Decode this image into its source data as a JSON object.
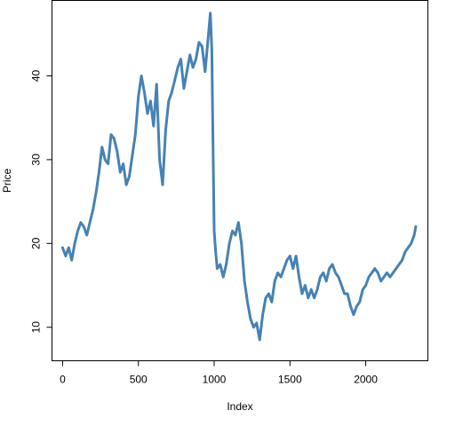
{
  "chart_data": {
    "type": "line",
    "title": "",
    "xlabel": "Index",
    "ylabel": "Price",
    "xlim": [
      -70,
      2410
    ],
    "ylim": [
      6.0,
      49.0
    ],
    "xticks": [
      0,
      500,
      1000,
      1500,
      2000
    ],
    "yticks": [
      10,
      20,
      30,
      40
    ],
    "grid": false,
    "legend": "none",
    "line_color": "#4682b4",
    "series": [
      {
        "x": [
          0,
          20,
          40,
          60,
          80,
          100,
          120,
          140,
          160,
          180,
          200,
          220,
          240,
          260,
          280,
          300,
          320,
          340,
          360,
          380,
          400,
          420,
          440,
          460,
          480,
          500,
          520,
          540,
          560,
          580,
          600,
          620,
          640,
          660,
          680,
          700,
          720,
          740,
          760,
          780,
          800,
          820,
          840,
          860,
          880,
          900,
          920,
          940,
          960,
          975,
          985,
          990,
          1000,
          1010,
          1020,
          1040,
          1060,
          1080,
          1100,
          1120,
          1140,
          1160,
          1180,
          1200,
          1220,
          1240,
          1260,
          1280,
          1300,
          1320,
          1340,
          1360,
          1380,
          1400,
          1420,
          1440,
          1460,
          1480,
          1500,
          1520,
          1540,
          1560,
          1580,
          1600,
          1620,
          1640,
          1660,
          1680,
          1700,
          1720,
          1740,
          1760,
          1780,
          1800,
          1820,
          1840,
          1860,
          1880,
          1900,
          1920,
          1940,
          1960,
          1980,
          2000,
          2020,
          2040,
          2060,
          2080,
          2100,
          2120,
          2140,
          2160,
          2180,
          2200,
          2220,
          2240,
          2260,
          2280,
          2300,
          2320,
          2330
        ],
        "y": [
          19.5,
          18.5,
          19.5,
          18.0,
          20.0,
          21.5,
          22.5,
          22.0,
          21.0,
          22.5,
          24.0,
          26.0,
          28.5,
          31.5,
          30.0,
          29.5,
          33.0,
          32.5,
          31.0,
          28.5,
          29.5,
          27.0,
          28.0,
          30.5,
          33.0,
          37.5,
          40.0,
          38.0,
          35.5,
          37.0,
          34.0,
          39.0,
          30.0,
          27.0,
          33.5,
          37.0,
          38.0,
          39.5,
          41.0,
          42.0,
          38.5,
          40.5,
          42.5,
          41.0,
          42.0,
          44.0,
          43.5,
          40.5,
          44.5,
          47.5,
          43.0,
          35.0,
          21.5,
          19.0,
          17.0,
          17.5,
          16.0,
          17.5,
          20.0,
          21.5,
          21.0,
          22.5,
          20.0,
          15.5,
          13.0,
          11.0,
          10.0,
          10.5,
          8.5,
          11.5,
          13.5,
          14.0,
          13.0,
          15.5,
          16.5,
          16.0,
          17.0,
          18.0,
          18.5,
          17.0,
          18.5,
          16.0,
          14.0,
          15.0,
          13.5,
          14.5,
          13.5,
          14.5,
          16.0,
          16.5,
          15.5,
          17.0,
          17.5,
          16.5,
          16.0,
          15.0,
          14.0,
          14.0,
          12.5,
          11.5,
          12.5,
          13.0,
          14.5,
          15.0,
          16.0,
          16.5,
          17.0,
          16.5,
          15.5,
          16.0,
          16.5,
          16.0,
          16.5,
          17.0,
          17.5,
          18.0,
          19.0,
          19.5,
          20.0,
          21.0,
          22.0
        ]
      }
    ]
  }
}
